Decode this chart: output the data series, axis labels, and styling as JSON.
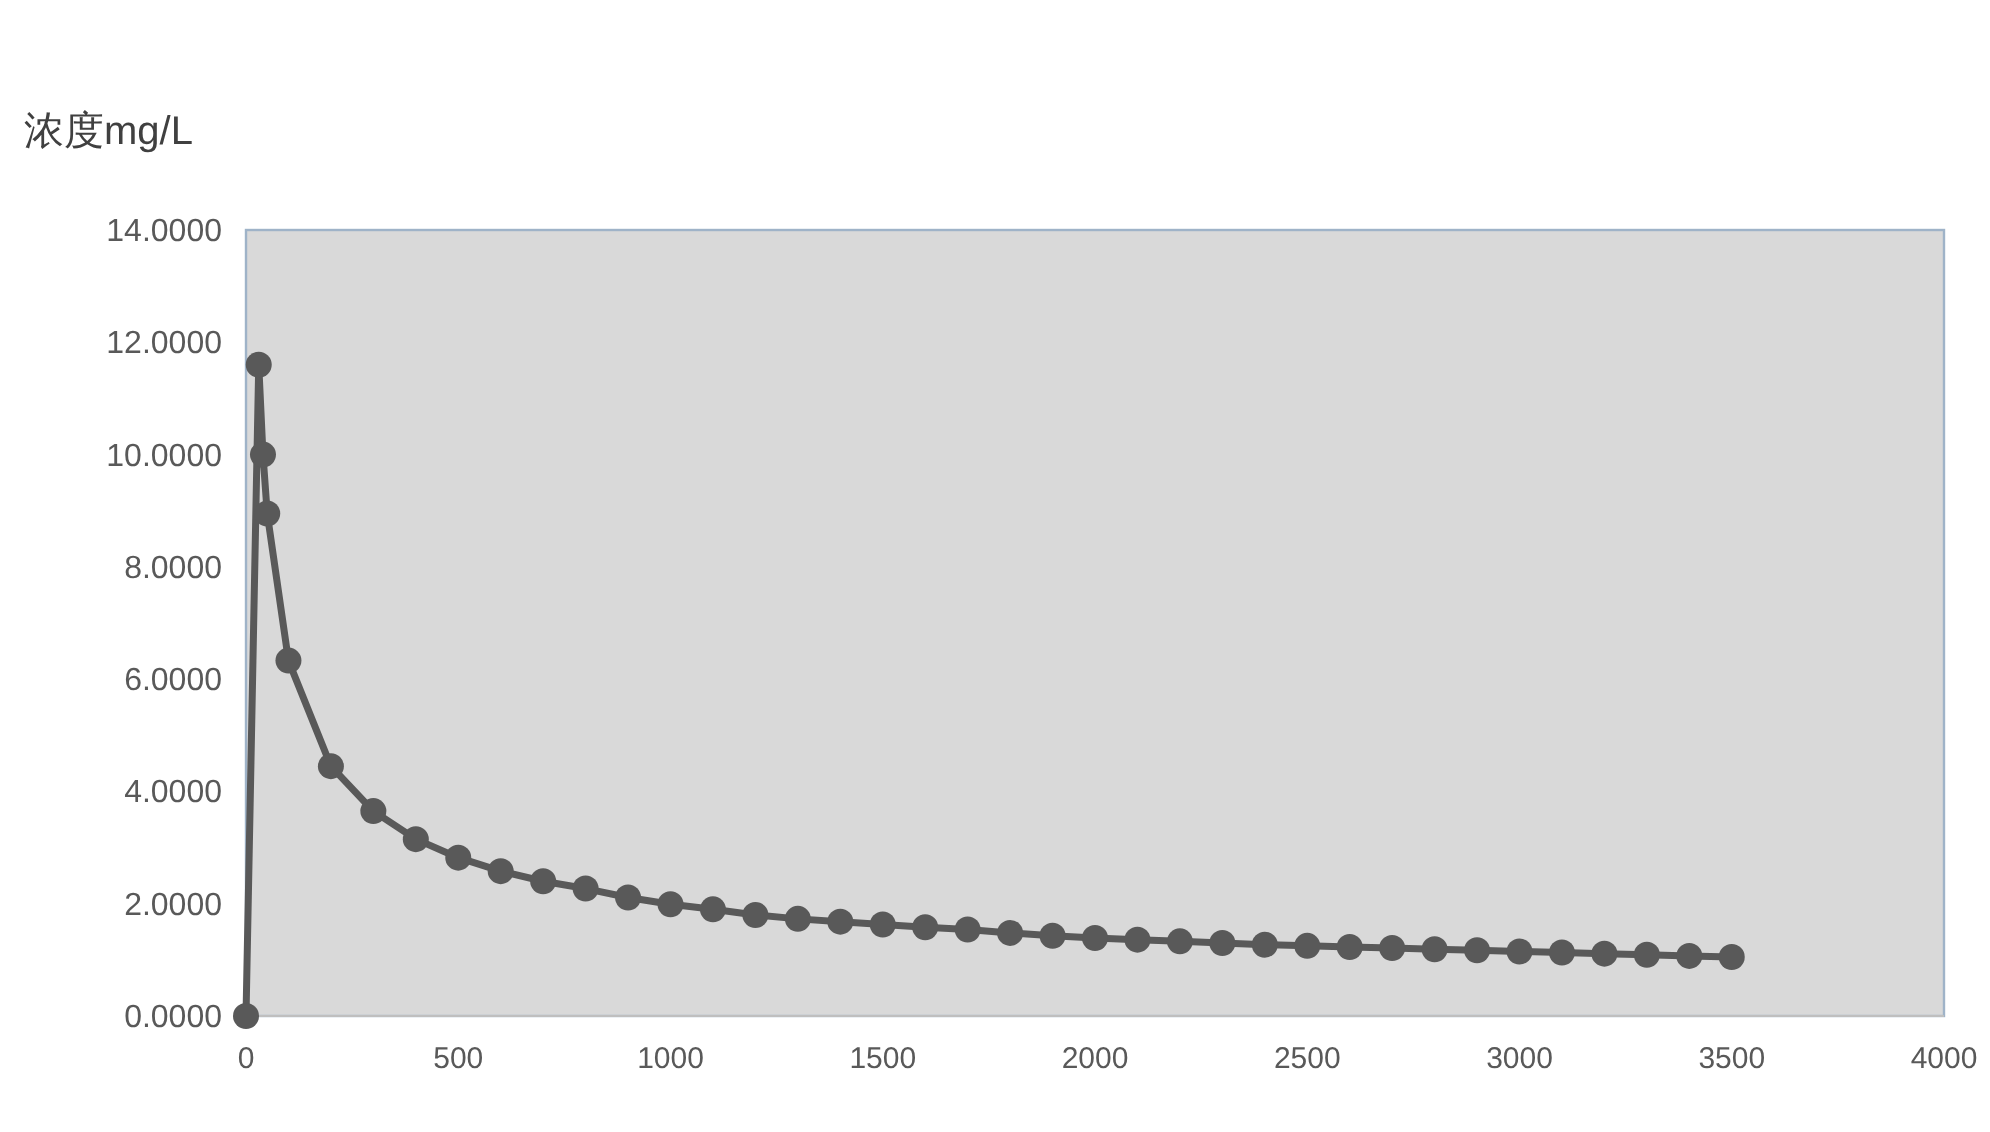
{
  "chart_data": {
    "type": "line",
    "ylabel": "浓度mg/L",
    "x": [
      0,
      30,
      40,
      50,
      100,
      200,
      300,
      400,
      500,
      600,
      700,
      800,
      900,
      1000,
      1100,
      1200,
      1300,
      1400,
      1500,
      1600,
      1700,
      1800,
      1900,
      2000,
      2100,
      2200,
      2300,
      2400,
      2500,
      2600,
      2700,
      2800,
      2900,
      3000,
      3100,
      3200,
      3300,
      3400,
      3500
    ],
    "series": [
      {
        "color": "#595959",
        "values": [
          0,
          11.6,
          10.0,
          8.95,
          6.33,
          4.45,
          3.65,
          3.15,
          2.82,
          2.58,
          2.4,
          2.27,
          2.11,
          1.99,
          1.9,
          1.8,
          1.73,
          1.68,
          1.63,
          1.58,
          1.54,
          1.48,
          1.43,
          1.39,
          1.36,
          1.33,
          1.3,
          1.27,
          1.25,
          1.23,
          1.21,
          1.19,
          1.17,
          1.15,
          1.13,
          1.11,
          1.09,
          1.07,
          1.05
        ]
      }
    ],
    "xlim": [
      0,
      4000
    ],
    "xticks": [
      0,
      500,
      1000,
      1500,
      2000,
      2500,
      3000,
      3500,
      4000
    ],
    "ylim": [
      0,
      14
    ],
    "yticks": [
      {
        "value": 0,
        "label": "0.0000"
      },
      {
        "value": 2,
        "label": "2.0000"
      },
      {
        "value": 4,
        "label": "4.0000"
      },
      {
        "value": 6,
        "label": "6.0000"
      },
      {
        "value": 8,
        "label": "8.0000"
      },
      {
        "value": 10,
        "label": "10.0000"
      },
      {
        "value": 12,
        "label": "12.0000"
      },
      {
        "value": 14,
        "label": "14.0000"
      }
    ],
    "grid": false,
    "marker": "circle",
    "line_style": "solid"
  }
}
